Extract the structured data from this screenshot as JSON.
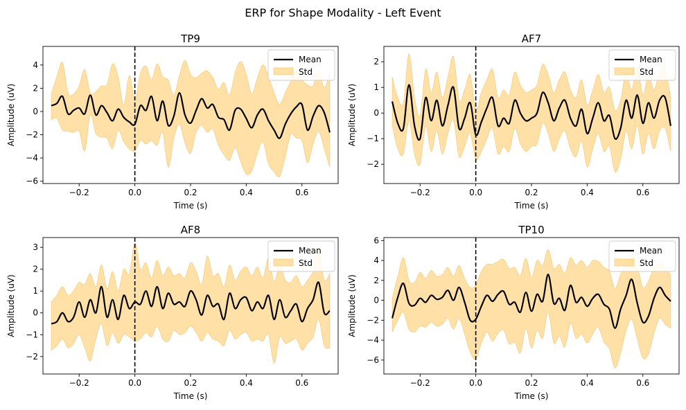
{
  "figure": {
    "suptitle": "ERP for Shape Modality - Left Event"
  },
  "colors": {
    "mean": "#000000",
    "std_fill": "#ffd68a",
    "std_edge": "#f7c46a",
    "event_line": "#000000"
  },
  "chart_data": [
    {
      "type": "line",
      "title": "TP9",
      "xlabel": "Time (s)",
      "ylabel": "Amplitude (uV)",
      "xlim": [
        -0.33,
        0.73
      ],
      "ylim": [
        -6.2,
        5.6
      ],
      "xticks": [
        -0.2,
        0.0,
        0.2,
        0.4,
        0.6
      ],
      "xtick_labels": [
        "−0.2",
        "0.0",
        "0.2",
        "0.4",
        "0.6"
      ],
      "yticks": [
        -6,
        -4,
        -2,
        0,
        2,
        4
      ],
      "ytick_labels": [
        "−6",
        "−4",
        "−2",
        "0",
        "2",
        "4"
      ],
      "event_line_x": 0.0,
      "legend": {
        "position": "top-right",
        "entries": [
          "Mean",
          "Std"
        ]
      },
      "series": [
        {
          "name": "Mean",
          "x": [
            -0.3,
            -0.28,
            -0.26,
            -0.24,
            -0.22,
            -0.2,
            -0.18,
            -0.16,
            -0.14,
            -0.12,
            -0.1,
            -0.08,
            -0.06,
            -0.04,
            -0.02,
            0.0,
            0.02,
            0.04,
            0.06,
            0.08,
            0.1,
            0.12,
            0.14,
            0.16,
            0.18,
            0.2,
            0.22,
            0.24,
            0.26,
            0.28,
            0.3,
            0.32,
            0.34,
            0.36,
            0.38,
            0.4,
            0.42,
            0.44,
            0.46,
            0.48,
            0.5,
            0.52,
            0.54,
            0.56,
            0.58,
            0.6,
            0.62,
            0.64,
            0.66,
            0.68,
            0.7
          ],
          "y": [
            0.5,
            0.7,
            1.3,
            -0.2,
            0.1,
            0.3,
            -0.2,
            1.4,
            -0.3,
            0.5,
            -0.1,
            -0.8,
            0.2,
            -0.5,
            -0.9,
            -1.1,
            0.5,
            0.1,
            1.3,
            -0.8,
            0.9,
            -1.2,
            -0.4,
            1.6,
            -0.3,
            -1.0,
            0.1,
            1.1,
            0.3,
            0.6,
            -0.5,
            -0.7,
            -1.6,
            0.1,
            0.2,
            -0.6,
            -1.4,
            -0.3,
            0.2,
            -0.8,
            -1.6,
            -2.3,
            -1.1,
            -0.2,
            0.4,
            0.6,
            -1.6,
            -0.4,
            0.5,
            -0.1,
            -1.8
          ]
        },
        {
          "name": "Std",
          "lower": [
            -0.7,
            -0.6,
            -1.6,
            -1.7,
            -1.8,
            -1.7,
            -3.4,
            -0.3,
            -1.9,
            -2.2,
            -2.3,
            -3.2,
            -1.6,
            -2.6,
            -3.2,
            -3.4,
            -2.5,
            -2.8,
            -2.5,
            -2.9,
            -1.8,
            -4.8,
            -2.3,
            -1.1,
            -2.7,
            -3.6,
            -1.8,
            -1.2,
            -1.8,
            -1.5,
            -2.9,
            -3.7,
            -4.2,
            -3.1,
            -4.3,
            -5.4,
            -5.1,
            -3.6,
            -2.6,
            -4.5,
            -5.2,
            -5.6,
            -3.9,
            -2.0,
            -2.3,
            -2.5,
            -4.4,
            -2.8,
            -1.7,
            -3.2,
            -4.8
          ],
          "upper": [
            1.5,
            3.0,
            4.2,
            1.6,
            1.5,
            2.2,
            3.6,
            1.6,
            1.7,
            2.2,
            2.3,
            4.1,
            3.0,
            0.5,
            3.1,
            1.0,
            3.3,
            3.9,
            2.7,
            4.1,
            3.0,
            2.7,
            1.4,
            3.1,
            4.4,
            3.2,
            2.9,
            3.3,
            3.5,
            2.9,
            1.9,
            2.5,
            1.4,
            3.3,
            4.3,
            3.2,
            1.5,
            2.9,
            4.0,
            3.0,
            1.6,
            0.6,
            1.6,
            2.6,
            3.5,
            2.7,
            2.3,
            2.2,
            3.6,
            2.0,
            3.4
          ]
        }
      ]
    },
    {
      "type": "line",
      "title": "AF7",
      "xlabel": "Time (s)",
      "ylabel": "Amplitude (uV)",
      "xlim": [
        -0.33,
        0.73
      ],
      "ylim": [
        -2.75,
        2.6
      ],
      "xticks": [
        -0.2,
        0.0,
        0.2,
        0.4,
        0.6
      ],
      "xtick_labels": [
        "−0.2",
        "0.0",
        "0.2",
        "0.4",
        "0.6"
      ],
      "yticks": [
        -2,
        -1,
        0,
        1,
        2
      ],
      "ytick_labels": [
        "−2",
        "−1",
        "0",
        "1",
        "2"
      ],
      "event_line_x": 0.0,
      "legend": {
        "position": "top-right",
        "entries": [
          "Mean",
          "Std"
        ]
      },
      "series": [
        {
          "name": "Mean",
          "x": [
            -0.3,
            -0.28,
            -0.26,
            -0.24,
            -0.22,
            -0.2,
            -0.18,
            -0.16,
            -0.14,
            -0.12,
            -0.1,
            -0.08,
            -0.06,
            -0.04,
            -0.02,
            0.0,
            0.02,
            0.04,
            0.06,
            0.08,
            0.1,
            0.12,
            0.14,
            0.16,
            0.18,
            0.2,
            0.22,
            0.24,
            0.26,
            0.28,
            0.3,
            0.32,
            0.34,
            0.36,
            0.38,
            0.4,
            0.42,
            0.44,
            0.46,
            0.48,
            0.5,
            0.52,
            0.54,
            0.56,
            0.58,
            0.6,
            0.62,
            0.64,
            0.66,
            0.68,
            0.7
          ],
          "y": [
            0.45,
            -0.4,
            -0.6,
            1.1,
            -0.5,
            -1.0,
            0.6,
            -0.3,
            0.5,
            -0.5,
            0.3,
            1.0,
            -0.6,
            -0.2,
            0.4,
            -0.85,
            -0.35,
            0.2,
            0.6,
            -0.5,
            -0.2,
            -0.4,
            0.5,
            0.0,
            -0.3,
            -0.2,
            0.0,
            0.8,
            0.4,
            -0.3,
            0.2,
            0.5,
            -0.2,
            -0.5,
            0.15,
            -0.8,
            -0.2,
            0.4,
            -0.3,
            -0.1,
            -1.0,
            -0.6,
            0.5,
            -0.2,
            0.7,
            -0.4,
            0.4,
            -0.2,
            0.5,
            0.6,
            -0.5
          ]
        },
        {
          "name": "Std",
          "lower": [
            -0.5,
            -1.4,
            -1.6,
            -0.3,
            -1.6,
            -2.0,
            -0.5,
            -1.5,
            -0.7,
            -1.6,
            -0.8,
            -0.3,
            -1.7,
            -1.3,
            -0.8,
            -1.8,
            -1.5,
            -1.0,
            -0.6,
            -1.6,
            -1.3,
            -1.5,
            -0.6,
            -1.2,
            -1.5,
            -1.3,
            -1.2,
            -0.4,
            -0.8,
            -1.5,
            -1.0,
            -0.7,
            -1.4,
            -1.7,
            -1.1,
            -2.1,
            -1.4,
            -0.8,
            -1.5,
            -1.3,
            -2.3,
            -1.8,
            -0.7,
            -1.4,
            -0.5,
            -1.6,
            -0.8,
            -1.4,
            -0.7,
            -0.6,
            -1.5
          ],
          "upper": [
            1.4,
            0.6,
            0.4,
            2.3,
            0.6,
            -0.1,
            1.7,
            0.8,
            1.6,
            0.6,
            1.4,
            2.2,
            0.5,
            0.9,
            1.5,
            0.1,
            0.8,
            1.3,
            1.7,
            0.6,
            0.9,
            0.7,
            1.6,
            1.1,
            0.8,
            0.9,
            1.1,
            1.9,
            1.5,
            0.8,
            1.3,
            1.6,
            0.9,
            0.6,
            1.3,
            0.3,
            0.9,
            1.5,
            0.8,
            1.0,
            0.1,
            0.5,
            1.6,
            0.9,
            1.8,
            0.7,
            1.5,
            0.9,
            1.6,
            1.7,
            0.6
          ]
        }
      ]
    },
    {
      "type": "line",
      "title": "AF8",
      "xlabel": "Time (s)",
      "ylabel": "Amplitude (uV)",
      "xlim": [
        -0.33,
        0.73
      ],
      "ylim": [
        -2.8,
        3.45
      ],
      "xticks": [
        -0.2,
        0.0,
        0.2,
        0.4,
        0.6
      ],
      "xtick_labels": [
        "−0.2",
        "0.0",
        "0.2",
        "0.4",
        "0.6"
      ],
      "yticks": [
        -2,
        -1,
        0,
        1,
        2,
        3
      ],
      "ytick_labels": [
        "−2",
        "−1",
        "0",
        "1",
        "2",
        "3"
      ],
      "event_line_x": 0.0,
      "legend": {
        "position": "top-right",
        "entries": [
          "Mean",
          "Std"
        ]
      },
      "series": [
        {
          "name": "Mean",
          "x": [
            -0.3,
            -0.28,
            -0.26,
            -0.24,
            -0.22,
            -0.2,
            -0.18,
            -0.16,
            -0.14,
            -0.12,
            -0.1,
            -0.08,
            -0.06,
            -0.04,
            -0.02,
            0.0,
            0.02,
            0.04,
            0.06,
            0.08,
            0.1,
            0.12,
            0.14,
            0.16,
            0.18,
            0.2,
            0.22,
            0.24,
            0.26,
            0.28,
            0.3,
            0.32,
            0.34,
            0.36,
            0.38,
            0.4,
            0.42,
            0.44,
            0.46,
            0.48,
            0.5,
            0.52,
            0.54,
            0.56,
            0.58,
            0.6,
            0.62,
            0.64,
            0.66,
            0.68,
            0.7
          ],
          "y": [
            -0.5,
            -0.4,
            0.0,
            -0.4,
            -0.2,
            0.5,
            -0.2,
            0.6,
            0.0,
            1.2,
            -0.2,
            0.6,
            -0.3,
            0.8,
            0.2,
            0.5,
            0.4,
            1.0,
            0.3,
            1.2,
            0.2,
            0.9,
            0.4,
            0.5,
            0.3,
            1.0,
            0.6,
            -0.1,
            0.8,
            0.3,
            0.4,
            -0.3,
            0.9,
            0.2,
            0.6,
            0.7,
            0.1,
            0.5,
            0.2,
            0.8,
            -0.3,
            0.6,
            -0.2,
            0.1,
            0.4,
            -0.4,
            0.2,
            0.6,
            1.4,
            0.0,
            0.1
          ]
        },
        {
          "name": "Std",
          "lower": [
            -1.7,
            -1.5,
            -1.2,
            -1.6,
            -1.4,
            -1.0,
            -1.6,
            -2.2,
            -1.2,
            -0.5,
            -1.5,
            -0.9,
            -1.4,
            -1.0,
            -1.1,
            -1.3,
            -1.2,
            -0.9,
            -1.1,
            -0.6,
            -1.2,
            -1.3,
            -0.8,
            -1.0,
            -0.9,
            -0.6,
            -0.9,
            -1.3,
            -0.9,
            -1.2,
            -1.3,
            -1.5,
            -0.8,
            -1.2,
            -1.0,
            -0.9,
            -1.3,
            -1.2,
            -1.3,
            -1.0,
            -2.3,
            -1.1,
            -1.4,
            -1.3,
            -1.2,
            -1.7,
            -1.4,
            -1.1,
            -0.3,
            -1.5,
            -1.6
          ],
          "upper": [
            0.5,
            0.8,
            1.2,
            0.8,
            1.0,
            1.4,
            1.3,
            1.8,
            1.2,
            2.2,
            1.1,
            1.9,
            1.0,
            2.0,
            1.8,
            3.2,
            2.0,
            2.3,
            1.6,
            2.4,
            1.7,
            2.1,
            1.7,
            1.8,
            1.6,
            2.3,
            1.9,
            1.3,
            2.6,
            1.7,
            1.8,
            1.2,
            2.2,
            1.5,
            1.9,
            2.1,
            1.7,
            2.1,
            1.6,
            2.5,
            1.4,
            2.2,
            1.5,
            1.4,
            1.7,
            1.2,
            1.5,
            1.9,
            2.9,
            1.5,
            1.8
          ]
        }
      ]
    },
    {
      "type": "line",
      "title": "TP10",
      "xlabel": "Time (s)",
      "ylabel": "Amplitude (uV)",
      "xlim": [
        -0.33,
        0.73
      ],
      "ylim": [
        -7.4,
        6.3
      ],
      "xticks": [
        -0.2,
        0.0,
        0.2,
        0.4,
        0.6
      ],
      "xtick_labels": [
        "−0.2",
        "0.0",
        "0.2",
        "0.4",
        "0.6"
      ],
      "yticks": [
        -6,
        -4,
        -2,
        0,
        2,
        4,
        6
      ],
      "ytick_labels": [
        "−6",
        "−4",
        "−2",
        "0",
        "2",
        "4",
        "6"
      ],
      "event_line_x": 0.0,
      "legend": {
        "position": "top-right",
        "entries": [
          "Mean",
          "Std"
        ]
      },
      "series": [
        {
          "name": "Mean",
          "x": [
            -0.3,
            -0.28,
            -0.26,
            -0.24,
            -0.22,
            -0.2,
            -0.18,
            -0.16,
            -0.14,
            -0.12,
            -0.1,
            -0.08,
            -0.06,
            -0.04,
            -0.02,
            0.0,
            0.02,
            0.04,
            0.06,
            0.08,
            0.1,
            0.12,
            0.14,
            0.16,
            0.18,
            0.2,
            0.22,
            0.24,
            0.26,
            0.28,
            0.3,
            0.32,
            0.34,
            0.36,
            0.38,
            0.4,
            0.42,
            0.44,
            0.46,
            0.48,
            0.5,
            0.52,
            0.54,
            0.56,
            0.58,
            0.6,
            0.62,
            0.64,
            0.66,
            0.68,
            0.7
          ],
          "y": [
            -1.8,
            0.3,
            1.7,
            -0.3,
            -0.5,
            0.2,
            -0.2,
            0.5,
            0.1,
            0.3,
            1.0,
            0.0,
            1.3,
            -0.2,
            -2.0,
            -1.9,
            -0.6,
            0.5,
            -0.1,
            0.6,
            0.9,
            -0.4,
            -0.2,
            -1.2,
            0.8,
            -1.1,
            0.6,
            -0.1,
            2.6,
            -0.3,
            0.2,
            -1.0,
            1.5,
            -0.2,
            0.3,
            -0.6,
            0.2,
            0.6,
            -0.4,
            -0.9,
            -2.8,
            -0.9,
            0.5,
            2.1,
            -0.3,
            -2.2,
            -1.6,
            0.2,
            1.3,
            0.5,
            -0.1
          ]
        },
        {
          "name": "Std",
          "lower": [
            -3.2,
            -2.0,
            -1.2,
            -2.9,
            -3.2,
            -2.6,
            -2.7,
            -2.2,
            -2.6,
            -2.4,
            -1.8,
            -2.9,
            -1.8,
            -3.4,
            -5.2,
            -5.9,
            -4.3,
            -3.2,
            -4.1,
            -3.3,
            -3.0,
            -4.4,
            -4.2,
            -5.3,
            -2.8,
            -4.8,
            -3.0,
            -3.8,
            -1.2,
            -4.3,
            -3.6,
            -4.7,
            -2.3,
            -3.8,
            -3.4,
            -4.3,
            -3.4,
            -2.7,
            -4.2,
            -4.9,
            -6.8,
            -5.3,
            -3.0,
            -1.9,
            -3.9,
            -5.8,
            -5.4,
            -3.3,
            -1.8,
            -2.4,
            -2.8
          ],
          "upper": [
            0.2,
            2.4,
            4.3,
            2.0,
            1.8,
            2.8,
            2.2,
            3.0,
            2.4,
            2.6,
            3.3,
            2.4,
            3.5,
            2.2,
            1.3,
            1.5,
            2.9,
            3.6,
            3.6,
            3.9,
            4.1,
            3.2,
            3.3,
            2.5,
            4.2,
            2.3,
            4.0,
            3.5,
            5.1,
            3.2,
            3.6,
            2.7,
            4.3,
            3.5,
            4.0,
            3.3,
            4.0,
            3.9,
            3.3,
            2.9,
            1.2,
            2.6,
            3.9,
            4.8,
            3.4,
            1.3,
            1.9,
            3.3,
            3.8,
            3.2,
            2.6
          ]
        }
      ]
    }
  ]
}
